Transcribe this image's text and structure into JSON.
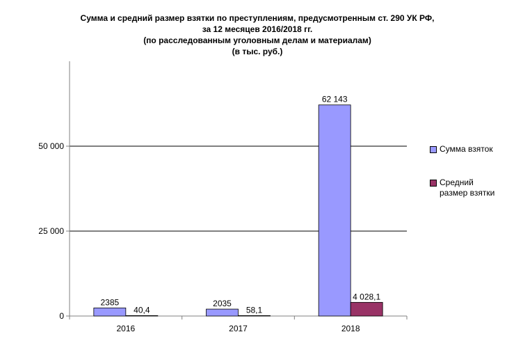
{
  "title_lines": [
    "Сумма и средний размер взятки по преступлениям, предусмотренным ст. 290 УК РФ,",
    "за 12 месяцев 2016/2018 гг.",
    "(по расследованным уголовным делам и материалам)",
    "(в тыс. руб.)"
  ],
  "colors": {
    "sum": "#9999ff",
    "avg": "#993366",
    "grid": "#000000",
    "axis": "#808080"
  },
  "chart_data": {
    "type": "bar",
    "categories": [
      "2016",
      "2017",
      "2018"
    ],
    "series": [
      {
        "name": "Сумма взяток",
        "values": [
          2385,
          2035,
          62143
        ],
        "labels": [
          "2385",
          "2035",
          "62 143"
        ]
      },
      {
        "name": "Средний размер взятки",
        "values": [
          40.4,
          58.1,
          4028.1
        ],
        "labels": [
          "40,4",
          "58,1",
          "4 028,1"
        ]
      }
    ],
    "ylim": [
      0,
      75000
    ],
    "yticks": [
      {
        "value": 0,
        "label": "0"
      },
      {
        "value": 25000,
        "label": "25 000"
      },
      {
        "value": 50000,
        "label": "50 000"
      }
    ],
    "grid": true,
    "legend": "right"
  },
  "legend": {
    "sum_lines": [
      "Сумма взяток"
    ],
    "avg_lines": [
      "Средний",
      "размер взятки"
    ]
  }
}
